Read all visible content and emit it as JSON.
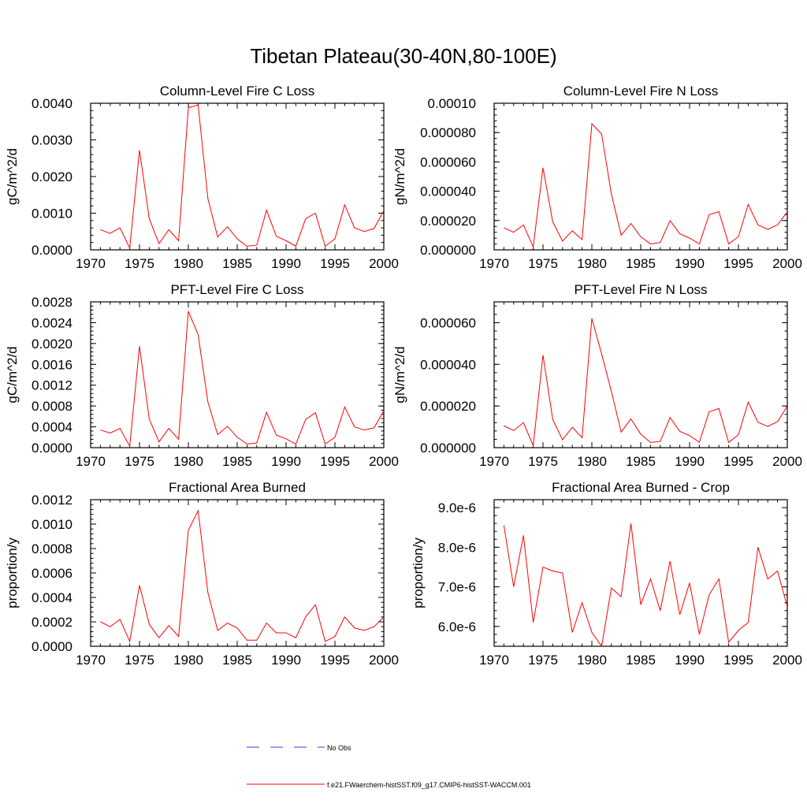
{
  "figure": {
    "title": "Tibetan Plateau(30-40N,80-100E)",
    "line_color": "#ff0000",
    "obs_color": "#3b3bd6"
  },
  "legend": {
    "obs_label": "No Obs",
    "model_label": "f.e21.FWaerchem-histSST.f09_g17.CMIP6-histSST-WACCM.001"
  },
  "chart_data": [
    {
      "type": "line",
      "title": "Column-Level Fire C Loss",
      "ylabel": "gC/m^2/d",
      "xlim": [
        1970,
        2000
      ],
      "ylim": [
        0,
        0.004
      ],
      "xticks": [
        1970,
        1975,
        1980,
        1985,
        1990,
        1995,
        2000
      ],
      "yticks": [
        0,
        0.001,
        0.002,
        0.003,
        0.004
      ],
      "ytick_labels": [
        "0.0000",
        "0.0010",
        "0.0020",
        "0.0030",
        "0.0040"
      ],
      "x": [
        1971,
        1972,
        1973,
        1974,
        1975,
        1976,
        1977,
        1978,
        1979,
        1980,
        1981,
        1982,
        1983,
        1984,
        1985,
        1986,
        1987,
        1988,
        1989,
        1990,
        1991,
        1992,
        1993,
        1994,
        1995,
        1996,
        1997,
        1998,
        1999,
        2000
      ],
      "series": [
        {
          "values": [
            0.00055,
            0.00045,
            0.0006,
            5e-05,
            0.00272,
            0.00085,
            0.00017,
            0.00055,
            0.00025,
            0.00388,
            0.00395,
            0.0014,
            0.00035,
            0.00063,
            0.0003,
            0.0001,
            0.00013,
            0.00108,
            0.00037,
            0.00025,
            0.0001,
            0.00085,
            0.001,
            0.0001,
            0.0003,
            0.00123,
            0.0006,
            0.0005,
            0.00058,
            0.00107
          ]
        }
      ]
    },
    {
      "type": "line",
      "title": "Column-Level Fire N Loss",
      "ylabel": "gN/m^2/d",
      "xlim": [
        1970,
        2000
      ],
      "ylim": [
        0,
        0.0001
      ],
      "xticks": [
        1970,
        1975,
        1980,
        1985,
        1990,
        1995,
        2000
      ],
      "yticks": [
        0,
        2e-05,
        4e-05,
        6e-05,
        8e-05,
        0.0001
      ],
      "ytick_labels": [
        "0.000000",
        "0.000020",
        "0.000040",
        "0.000060",
        "0.000080",
        "0.00010"
      ],
      "x": [
        1971,
        1972,
        1973,
        1974,
        1975,
        1976,
        1977,
        1978,
        1979,
        1980,
        1981,
        1982,
        1983,
        1984,
        1985,
        1986,
        1987,
        1988,
        1989,
        1990,
        1991,
        1992,
        1993,
        1994,
        1995,
        1996,
        1997,
        1998,
        1999,
        2000
      ],
      "series": [
        {
          "values": [
            1.5e-05,
            1.2e-05,
            1.7e-05,
            2e-06,
            5.6e-05,
            1.9e-05,
            6e-06,
            1.3e-05,
            7e-06,
            8.6e-05,
            7.9e-05,
            3.8e-05,
            1e-05,
            1.8e-05,
            9e-06,
            4e-06,
            5e-06,
            2e-05,
            1.1e-05,
            8e-06,
            4e-06,
            2.4e-05,
            2.6e-05,
            4e-06,
            9e-06,
            3.1e-05,
            1.7e-05,
            1.4e-05,
            1.7e-05,
            2.6e-05
          ]
        }
      ]
    },
    {
      "type": "line",
      "title": "PFT-Level Fire C Loss",
      "ylabel": "gC/m^2/d",
      "xlim": [
        1970,
        2000
      ],
      "ylim": [
        0,
        0.0028
      ],
      "xticks": [
        1970,
        1975,
        1980,
        1985,
        1990,
        1995,
        2000
      ],
      "yticks": [
        0,
        0.0004,
        0.0008,
        0.0012,
        0.0016,
        0.002,
        0.0024,
        0.0028
      ],
      "ytick_labels": [
        "0.0000",
        "0.0004",
        "0.0008",
        "0.0012",
        "0.0016",
        "0.0020",
        "0.0024",
        "0.0028"
      ],
      "x": [
        1971,
        1972,
        1973,
        1974,
        1975,
        1976,
        1977,
        1978,
        1979,
        1980,
        1981,
        1982,
        1983,
        1984,
        1985,
        1986,
        1987,
        1988,
        1989,
        1990,
        1991,
        1992,
        1993,
        1994,
        1995,
        1996,
        1997,
        1998,
        1999,
        2000
      ],
      "series": [
        {
          "values": [
            0.00034,
            0.00028,
            0.00037,
            3e-05,
            0.00195,
            0.00055,
            0.00011,
            0.00037,
            0.00016,
            0.00262,
            0.00217,
            0.00088,
            0.00025,
            0.00041,
            0.0002,
            7e-05,
            9e-05,
            0.00068,
            0.00024,
            0.00017,
            7e-05,
            0.00054,
            0.00067,
            7e-05,
            0.0002,
            0.00078,
            0.0004,
            0.00034,
            0.00038,
            0.00071
          ]
        }
      ]
    },
    {
      "type": "line",
      "title": "PFT-Level Fire N Loss",
      "ylabel": "gN/m^2/d",
      "xlim": [
        1970,
        2000
      ],
      "ylim": [
        0,
        7e-05
      ],
      "xticks": [
        1970,
        1975,
        1980,
        1985,
        1990,
        1995,
        2000
      ],
      "yticks": [
        0,
        2e-05,
        4e-05,
        6e-05
      ],
      "ytick_labels": [
        "0.000000",
        "0.000020",
        "0.000040",
        "0.000060"
      ],
      "x": [
        1971,
        1972,
        1973,
        1974,
        1975,
        1976,
        1977,
        1978,
        1979,
        1980,
        1981,
        1982,
        1983,
        1984,
        1985,
        1986,
        1987,
        1988,
        1989,
        1990,
        1991,
        1992,
        1993,
        1994,
        1995,
        1996,
        1997,
        1998,
        1999,
        2000
      ],
      "series": [
        {
          "values": [
            1.05e-05,
            8.2e-06,
            1.2e-05,
            1e-06,
            4.45e-05,
            1.35e-05,
            3.8e-06,
            9.8e-06,
            4.8e-06,
            6.2e-05,
            4.5e-05,
            2.7e-05,
            7.5e-06,
            1.38e-05,
            6.5e-06,
            2.5e-06,
            3e-06,
            1.45e-05,
            7.8e-06,
            5.8e-06,
            2.6e-06,
            1.72e-05,
            1.88e-05,
            2.5e-06,
            6.2e-06,
            2.19e-05,
            1.22e-05,
            1.02e-05,
            1.25e-05,
            2e-05
          ]
        }
      ]
    },
    {
      "type": "line",
      "title": "Fractional Area Burned",
      "ylabel": "proportion/y",
      "xlim": [
        1970,
        2000
      ],
      "ylim": [
        0,
        0.0012
      ],
      "xticks": [
        1970,
        1975,
        1980,
        1985,
        1990,
        1995,
        2000
      ],
      "yticks": [
        0,
        0.0002,
        0.0004,
        0.0006,
        0.0008,
        0.001,
        0.0012
      ],
      "ytick_labels": [
        "0.0000",
        "0.0002",
        "0.0004",
        "0.0006",
        "0.0008",
        "0.0010",
        "0.0012"
      ],
      "x": [
        1971,
        1972,
        1973,
        1974,
        1975,
        1976,
        1977,
        1978,
        1979,
        1980,
        1981,
        1982,
        1983,
        1984,
        1985,
        1986,
        1987,
        1988,
        1989,
        1990,
        1991,
        1992,
        1993,
        1994,
        1995,
        1996,
        1997,
        1998,
        1999,
        2000
      ],
      "series": [
        {
          "values": [
            0.0002,
            0.00016,
            0.00022,
            4e-05,
            0.0005,
            0.00018,
            7e-05,
            0.00017,
            8e-05,
            0.00095,
            0.00111,
            0.00044,
            0.00013,
            0.00019,
            0.00015,
            5e-05,
            5e-05,
            0.00019,
            0.00011,
            0.00011,
            7e-05,
            0.00024,
            0.00034,
            4e-05,
            8e-05,
            0.00024,
            0.00015,
            0.00013,
            0.00016,
            0.00024
          ]
        }
      ]
    },
    {
      "type": "line",
      "title": "Fractional Area Burned - Crop",
      "ylabel": "proportion/y",
      "xlim": [
        1970,
        2000
      ],
      "ylim": [
        5.5e-06,
        9.2e-06
      ],
      "xticks": [
        1970,
        1975,
        1980,
        1985,
        1990,
        1995,
        2000
      ],
      "yticks": [
        6e-06,
        7e-06,
        8e-06,
        9e-06
      ],
      "ytick_labels": [
        "6.0e-6",
        "7.0e-6",
        "8.0e-6",
        "9.0e-6"
      ],
      "x": [
        1971,
        1972,
        1973,
        1974,
        1975,
        1976,
        1977,
        1978,
        1979,
        1980,
        1981,
        1982,
        1983,
        1984,
        1985,
        1986,
        1987,
        1988,
        1989,
        1990,
        1991,
        1992,
        1993,
        1994,
        1995,
        1996,
        1997,
        1998,
        1999,
        2000
      ],
      "series": [
        {
          "values": [
            8.55e-06,
            7e-06,
            8.3e-06,
            6.1e-06,
            7.5e-06,
            7.4e-06,
            7.35e-06,
            5.85e-06,
            6.6e-06,
            5.85e-06,
            5.5e-06,
            6.97e-06,
            6.75e-06,
            8.6e-06,
            6.55e-06,
            7.2e-06,
            6.4e-06,
            7.65e-06,
            6.3e-06,
            7.1e-06,
            5.8e-06,
            6.8e-06,
            7.2e-06,
            5.6e-06,
            5.9e-06,
            6.1e-06,
            8e-06,
            7.2e-06,
            7.4e-06,
            6.5e-06
          ]
        }
      ]
    }
  ]
}
